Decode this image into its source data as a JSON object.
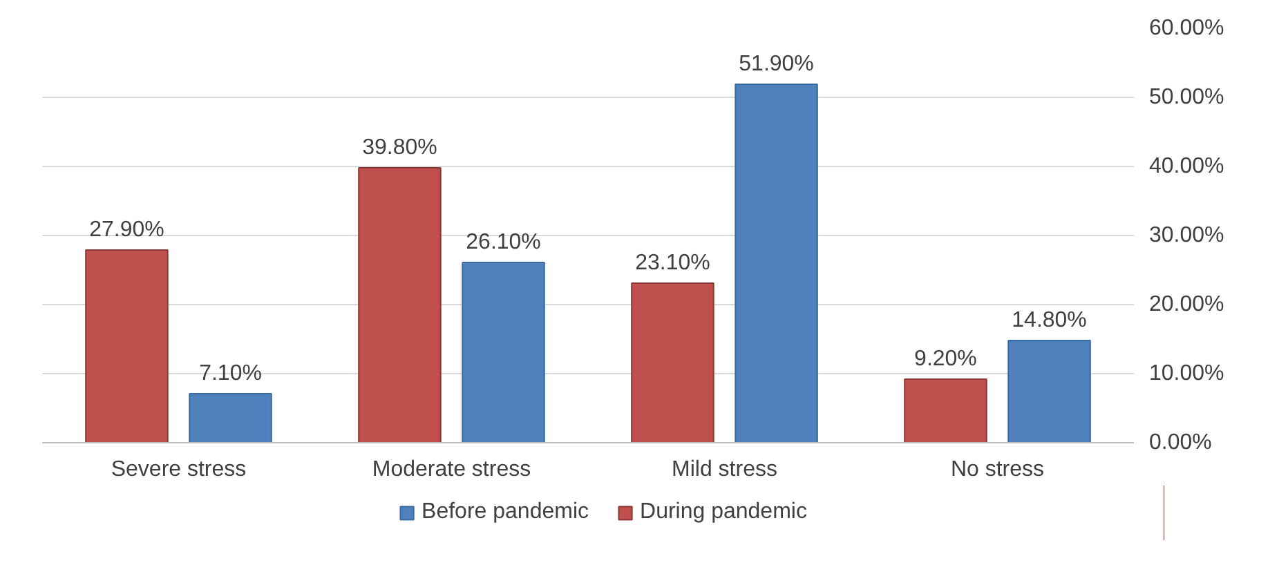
{
  "chart_data": {
    "type": "bar",
    "categories": [
      "Severe stress",
      "Moderate stress",
      "Mild stress",
      "No stress"
    ],
    "series": [
      {
        "name": "During pandemic",
        "color": "#c0504d",
        "values": [
          27.9,
          39.8,
          23.1,
          9.2
        ],
        "value_labels": [
          "27.90%",
          "39.80%",
          "23.10%",
          "9.20%"
        ]
      },
      {
        "name": "Before pandemic",
        "color": "#4f81bd",
        "values": [
          7.1,
          26.1,
          51.9,
          14.8
        ],
        "value_labels": [
          "7.10%",
          "26.10%",
          "51.90%",
          "14.80%"
        ]
      }
    ],
    "ylim": [
      0,
      60
    ],
    "yticks": [
      {
        "value": 0,
        "label": "0.00%"
      },
      {
        "value": 10,
        "label": "10.00%"
      },
      {
        "value": 20,
        "label": "20.00%"
      },
      {
        "value": 30,
        "label": "30.00%"
      },
      {
        "value": 40,
        "label": "40.00%"
      },
      {
        "value": 50,
        "label": "50.00%"
      },
      {
        "value": 60,
        "label": "60.00%"
      }
    ],
    "grid": "y",
    "legend": "bottom"
  }
}
